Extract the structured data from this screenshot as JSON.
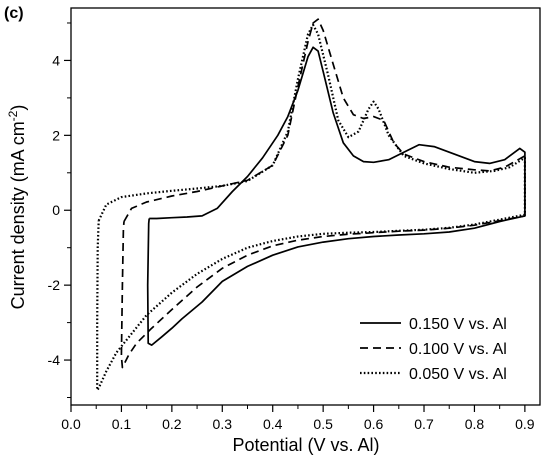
{
  "panel_label": "(c)",
  "chart_data": {
    "type": "line",
    "title": "",
    "xlabel": "Potential (V vs. Al)",
    "ylabel": "Current density  (mA cm",
    "ylabel_sup": "-2",
    "ylabel_end": ")",
    "xlim": [
      0.0,
      0.93
    ],
    "ylim": [
      -5.2,
      5.4
    ],
    "xticks": [
      0.0,
      0.1,
      0.2,
      0.3,
      0.4,
      0.5,
      0.6,
      0.7,
      0.8,
      0.9
    ],
    "xtick_labels": [
      "0.0",
      "0.1",
      "0.2",
      "0.3",
      "0.4",
      "0.5",
      "0.6",
      "0.7",
      "0.8",
      "0.9"
    ],
    "yticks": [
      -4,
      -2,
      0,
      2,
      4
    ],
    "ytick_labels": [
      "-4",
      "-2",
      "0",
      "2",
      "4"
    ],
    "grid": false,
    "legend_position": "bottom-right",
    "series": [
      {
        "name": "0.150 V vs. Al",
        "style": "solid",
        "points": [
          [
            0.155,
            -0.22
          ],
          [
            0.17,
            -0.22
          ],
          [
            0.2,
            -0.2
          ],
          [
            0.23,
            -0.18
          ],
          [
            0.26,
            -0.15
          ],
          [
            0.29,
            0.05
          ],
          [
            0.32,
            0.5
          ],
          [
            0.35,
            0.9
          ],
          [
            0.38,
            1.4
          ],
          [
            0.41,
            2.0
          ],
          [
            0.43,
            2.5
          ],
          [
            0.45,
            3.2
          ],
          [
            0.47,
            4.1
          ],
          [
            0.48,
            4.35
          ],
          [
            0.49,
            4.25
          ],
          [
            0.5,
            3.7
          ],
          [
            0.52,
            2.6
          ],
          [
            0.54,
            1.8
          ],
          [
            0.56,
            1.45
          ],
          [
            0.58,
            1.3
          ],
          [
            0.6,
            1.28
          ],
          [
            0.63,
            1.35
          ],
          [
            0.66,
            1.55
          ],
          [
            0.69,
            1.75
          ],
          [
            0.72,
            1.7
          ],
          [
            0.76,
            1.5
          ],
          [
            0.8,
            1.3
          ],
          [
            0.83,
            1.25
          ],
          [
            0.86,
            1.35
          ],
          [
            0.89,
            1.65
          ],
          [
            0.9,
            1.55
          ],
          [
            0.9,
            -0.15
          ],
          [
            0.85,
            -0.3
          ],
          [
            0.8,
            -0.48
          ],
          [
            0.75,
            -0.58
          ],
          [
            0.7,
            -0.63
          ],
          [
            0.65,
            -0.66
          ],
          [
            0.6,
            -0.7
          ],
          [
            0.55,
            -0.76
          ],
          [
            0.5,
            -0.85
          ],
          [
            0.45,
            -0.98
          ],
          [
            0.4,
            -1.2
          ],
          [
            0.35,
            -1.5
          ],
          [
            0.3,
            -1.9
          ],
          [
            0.26,
            -2.45
          ],
          [
            0.22,
            -2.9
          ],
          [
            0.2,
            -3.15
          ],
          [
            0.18,
            -3.38
          ],
          [
            0.16,
            -3.6
          ],
          [
            0.153,
            -3.55
          ],
          [
            0.152,
            -2.0
          ],
          [
            0.154,
            -0.35
          ],
          [
            0.155,
            -0.22
          ]
        ]
      },
      {
        "name": "0.100 V vs. Al",
        "style": "dashed",
        "points": [
          [
            0.105,
            -0.3
          ],
          [
            0.12,
            0.05
          ],
          [
            0.15,
            0.22
          ],
          [
            0.2,
            0.38
          ],
          [
            0.25,
            0.5
          ],
          [
            0.3,
            0.65
          ],
          [
            0.35,
            0.8
          ],
          [
            0.4,
            1.2
          ],
          [
            0.43,
            2.0
          ],
          [
            0.45,
            3.3
          ],
          [
            0.47,
            4.5
          ],
          [
            0.48,
            5.0
          ],
          [
            0.49,
            5.1
          ],
          [
            0.5,
            4.8
          ],
          [
            0.52,
            3.9
          ],
          [
            0.54,
            3.0
          ],
          [
            0.56,
            2.55
          ],
          [
            0.58,
            2.45
          ],
          [
            0.6,
            2.5
          ],
          [
            0.62,
            2.4
          ],
          [
            0.64,
            1.8
          ],
          [
            0.66,
            1.5
          ],
          [
            0.7,
            1.3
          ],
          [
            0.75,
            1.15
          ],
          [
            0.8,
            1.08
          ],
          [
            0.83,
            1.05
          ],
          [
            0.86,
            1.15
          ],
          [
            0.9,
            1.45
          ],
          [
            0.9,
            -0.15
          ],
          [
            0.85,
            -0.28
          ],
          [
            0.8,
            -0.4
          ],
          [
            0.75,
            -0.48
          ],
          [
            0.7,
            -0.53
          ],
          [
            0.65,
            -0.56
          ],
          [
            0.6,
            -0.6
          ],
          [
            0.55,
            -0.64
          ],
          [
            0.5,
            -0.7
          ],
          [
            0.45,
            -0.8
          ],
          [
            0.4,
            -0.95
          ],
          [
            0.35,
            -1.2
          ],
          [
            0.3,
            -1.55
          ],
          [
            0.25,
            -2.05
          ],
          [
            0.2,
            -2.65
          ],
          [
            0.16,
            -3.15
          ],
          [
            0.13,
            -3.55
          ],
          [
            0.115,
            -3.85
          ],
          [
            0.102,
            -4.2
          ],
          [
            0.1,
            -3.9
          ],
          [
            0.102,
            -2.0
          ],
          [
            0.104,
            -0.5
          ],
          [
            0.105,
            -0.3
          ]
        ]
      },
      {
        "name": "0.050 V vs. Al",
        "style": "dotted",
        "points": [
          [
            0.055,
            -0.28
          ],
          [
            0.07,
            0.15
          ],
          [
            0.1,
            0.35
          ],
          [
            0.15,
            0.45
          ],
          [
            0.2,
            0.52
          ],
          [
            0.25,
            0.58
          ],
          [
            0.3,
            0.65
          ],
          [
            0.35,
            0.78
          ],
          [
            0.4,
            1.2
          ],
          [
            0.43,
            2.1
          ],
          [
            0.45,
            3.5
          ],
          [
            0.47,
            4.7
          ],
          [
            0.48,
            4.95
          ],
          [
            0.49,
            4.7
          ],
          [
            0.51,
            3.6
          ],
          [
            0.53,
            2.4
          ],
          [
            0.55,
            1.95
          ],
          [
            0.57,
            2.1
          ],
          [
            0.59,
            2.7
          ],
          [
            0.6,
            2.9
          ],
          [
            0.61,
            2.7
          ],
          [
            0.63,
            2.0
          ],
          [
            0.66,
            1.45
          ],
          [
            0.7,
            1.25
          ],
          [
            0.75,
            1.1
          ],
          [
            0.8,
            1.0
          ],
          [
            0.84,
            1.05
          ],
          [
            0.87,
            1.15
          ],
          [
            0.9,
            1.4
          ],
          [
            0.9,
            -0.12
          ],
          [
            0.85,
            -0.25
          ],
          [
            0.8,
            -0.38
          ],
          [
            0.75,
            -0.47
          ],
          [
            0.7,
            -0.52
          ],
          [
            0.65,
            -0.55
          ],
          [
            0.6,
            -0.58
          ],
          [
            0.55,
            -0.6
          ],
          [
            0.5,
            -0.63
          ],
          [
            0.45,
            -0.7
          ],
          [
            0.4,
            -0.82
          ],
          [
            0.35,
            -1.0
          ],
          [
            0.3,
            -1.3
          ],
          [
            0.25,
            -1.7
          ],
          [
            0.2,
            -2.2
          ],
          [
            0.15,
            -2.8
          ],
          [
            0.12,
            -3.3
          ],
          [
            0.09,
            -3.8
          ],
          [
            0.07,
            -4.3
          ],
          [
            0.055,
            -4.75
          ],
          [
            0.052,
            -4.8
          ],
          [
            0.052,
            -3.0
          ],
          [
            0.053,
            -1.0
          ],
          [
            0.055,
            -0.28
          ]
        ]
      }
    ]
  }
}
